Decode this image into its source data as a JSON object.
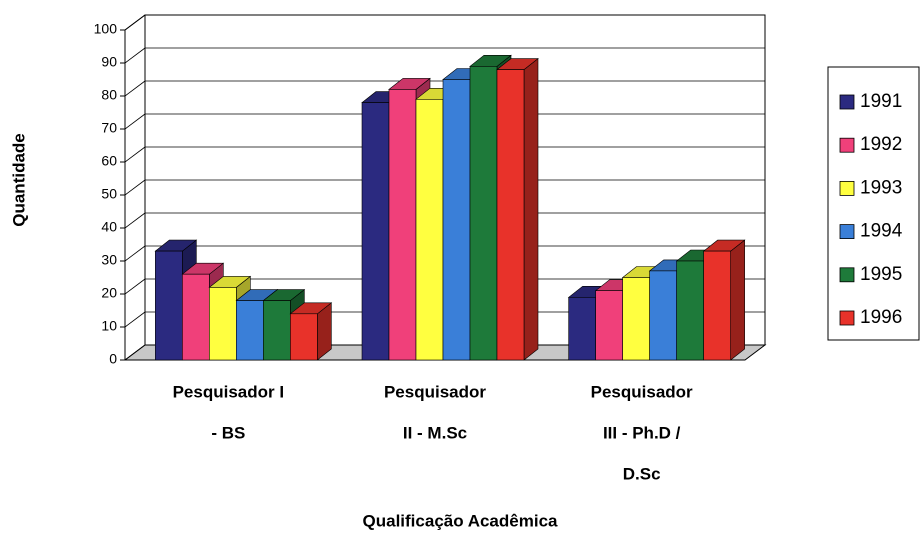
{
  "chart_data": {
    "type": "bar3d",
    "x_label": "Qualificação Acadêmica",
    "y_label": "Quantidade",
    "categories": [
      [
        "Pesquisador I",
        "- BS"
      ],
      [
        "Pesquisador",
        "II - M.Sc"
      ],
      [
        "Pesquisador",
        "III - Ph.D /",
        "D.Sc"
      ]
    ],
    "series": [
      {
        "name": "1991",
        "color": "#2b2a80",
        "values": [
          33,
          78,
          19
        ]
      },
      {
        "name": "1992",
        "color": "#f0407a",
        "values": [
          26,
          82,
          21
        ]
      },
      {
        "name": "1993",
        "color": "#ffff40",
        "values": [
          22,
          79,
          25
        ]
      },
      {
        "name": "1994",
        "color": "#3a7fd8",
        "values": [
          18,
          85,
          27
        ]
      },
      {
        "name": "1995",
        "color": "#1e7a3a",
        "values": [
          18,
          89,
          30
        ]
      },
      {
        "name": "1996",
        "color": "#e8322a",
        "values": [
          14,
          88,
          33
        ]
      }
    ],
    "ylim": [
      0,
      100
    ],
    "yticks": [
      0,
      10,
      20,
      30,
      40,
      50,
      60,
      70,
      80,
      90,
      100
    ],
    "grid": true,
    "legend": "right"
  }
}
